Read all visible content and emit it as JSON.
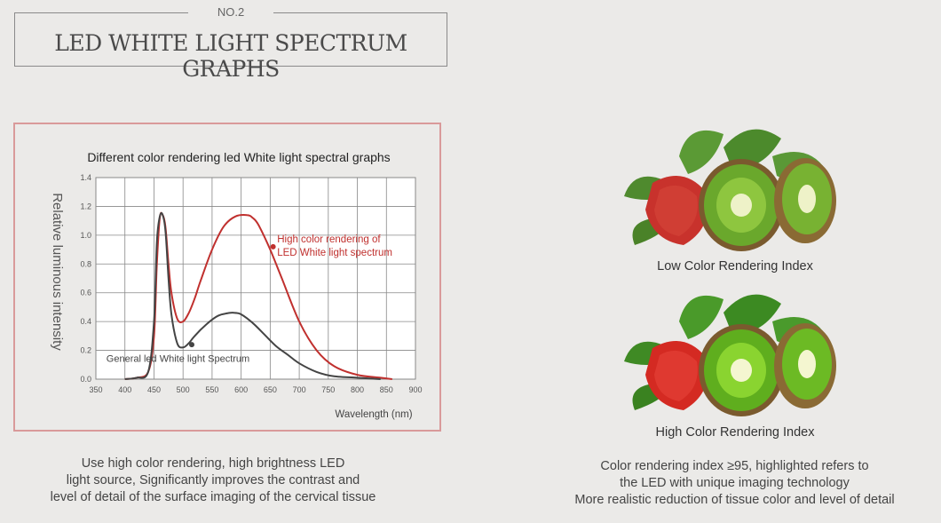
{
  "header": {
    "number": "NO.2",
    "title": "LED WHITE LIGHT SPECTRUM GRAPHS"
  },
  "chart_data": {
    "type": "line",
    "title": "Different color rendering led White light spectral graphs",
    "xlabel": "Wavelength (nm)",
    "ylabel": "Relative luminous intensity",
    "xlim": [
      350,
      900
    ],
    "ylim": [
      0,
      1.4
    ],
    "xticks": [
      "350",
      "400",
      "450",
      "500",
      "550",
      "600",
      "650",
      "700",
      "750",
      "800",
      "850",
      "900"
    ],
    "yticks": [
      "0.0",
      "0.2",
      "0.4",
      "0.6",
      "0.8",
      "1.0",
      "1.2",
      "1.4"
    ],
    "grid": true,
    "series": [
      {
        "name": "High color rendering of LED White light spectrum",
        "color": "#c0302e",
        "label_lines": [
          "High color rendering of",
          "LED White light spectrum"
        ],
        "x": [
          400,
          420,
          440,
          450,
          455,
          460,
          465,
          470,
          475,
          480,
          490,
          500,
          510,
          520,
          530,
          550,
          570,
          590,
          610,
          620,
          630,
          650,
          670,
          700,
          730,
          760,
          800,
          840,
          860
        ],
        "y": [
          0,
          0.01,
          0.05,
          0.3,
          0.8,
          1.12,
          1.14,
          1.05,
          0.8,
          0.6,
          0.42,
          0.4,
          0.46,
          0.56,
          0.68,
          0.9,
          1.06,
          1.13,
          1.14,
          1.12,
          1.07,
          0.9,
          0.7,
          0.4,
          0.2,
          0.09,
          0.03,
          0.01,
          0
        ]
      },
      {
        "name": "General led White light Spectrum",
        "color": "#444444",
        "x": [
          400,
          420,
          440,
          450,
          455,
          460,
          465,
          470,
          475,
          480,
          490,
          500,
          510,
          520,
          540,
          560,
          580,
          590,
          600,
          620,
          640,
          660,
          680,
          700,
          730,
          760,
          800,
          840
        ],
        "y": [
          0,
          0.01,
          0.05,
          0.4,
          0.95,
          1.13,
          1.14,
          1.02,
          0.7,
          0.45,
          0.25,
          0.22,
          0.25,
          0.3,
          0.38,
          0.44,
          0.46,
          0.46,
          0.45,
          0.39,
          0.31,
          0.23,
          0.17,
          0.11,
          0.05,
          0.02,
          0.01,
          0
        ]
      }
    ]
  },
  "left_caption": [
    "Use high color rendering, high brightness LED",
    "light source, Significantly improves the contrast and",
    "level of detail of the surface imaging of the cervical tissue"
  ],
  "low_label": "Low Color Rendering Index",
  "high_label": "High Color Rendering Index",
  "right_caption": [
    "Color rendering index ≥95, highlighted refers to",
    "the LED with unique imaging technology",
    "More realistic reduction of tissue color and level of detail"
  ],
  "colors": {
    "frame": "#d99a9a",
    "high_series": "#c0302e",
    "general_series": "#444444"
  }
}
